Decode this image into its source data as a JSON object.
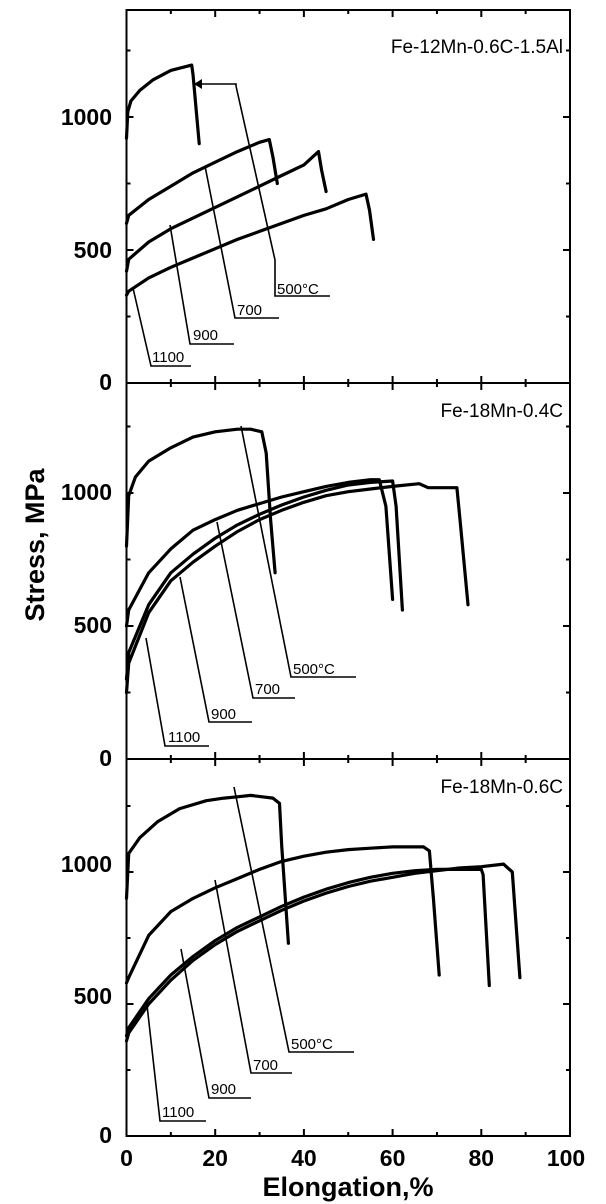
{
  "chart_data": {
    "type": "line",
    "xlabel": "Elongation,%",
    "ylabel": "Stress, MPa",
    "xlim": [
      0,
      100
    ],
    "ylim": [
      0,
      1420
    ],
    "x_ticks": [
      "0",
      "20",
      "40",
      "60",
      "80",
      "100"
    ],
    "y_ticks": [
      "0",
      "500",
      "1000"
    ],
    "panels": [
      {
        "title": "Fe-12Mn-0.6C-1.5Al",
        "series": [
          {
            "name": "500°C",
            "points": [
              [
                0,
                920
              ],
              [
                0.3,
                1020
              ],
              [
                1,
                1060
              ],
              [
                3,
                1100
              ],
              [
                6,
                1140
              ],
              [
                10,
                1175
              ],
              [
                14.7,
                1195
              ],
              [
                15,
                1160
              ],
              [
                16.4,
                900
              ]
            ]
          },
          {
            "name": "700",
            "points": [
              [
                0,
                600
              ],
              [
                0.5,
                630
              ],
              [
                5,
                690
              ],
              [
                10,
                740
              ],
              [
                15,
                790
              ],
              [
                20,
                830
              ],
              [
                25,
                870
              ],
              [
                30,
                905
              ],
              [
                32.2,
                915
              ],
              [
                33,
                850
              ],
              [
                34,
                750
              ]
            ]
          },
          {
            "name": "900",
            "points": [
              [
                0,
                420
              ],
              [
                0.5,
                465
              ],
              [
                5,
                530
              ],
              [
                10,
                580
              ],
              [
                15,
                620
              ],
              [
                20,
                660
              ],
              [
                25,
                700
              ],
              [
                30,
                740
              ],
              [
                35,
                780
              ],
              [
                40,
                820
              ],
              [
                43.3,
                870
              ],
              [
                44,
                800
              ],
              [
                45,
                720
              ]
            ]
          },
          {
            "name": "1100",
            "points": [
              [
                0,
                330
              ],
              [
                0.5,
                345
              ],
              [
                5,
                395
              ],
              [
                10,
                435
              ],
              [
                15,
                470
              ],
              [
                20,
                505
              ],
              [
                25,
                540
              ],
              [
                30,
                570
              ],
              [
                35,
                600
              ],
              [
                40,
                630
              ],
              [
                45,
                655
              ],
              [
                50,
                690
              ],
              [
                54,
                710
              ],
              [
                54.8,
                650
              ],
              [
                55.7,
                540
              ]
            ]
          }
        ],
        "labels": [
          "500°C",
          "700",
          "900",
          "1100"
        ]
      },
      {
        "title": "Fe-18Mn-0.4C",
        "series": [
          {
            "name": "500°C",
            "points": [
              [
                0,
                800
              ],
              [
                0.5,
                990
              ],
              [
                2,
                1060
              ],
              [
                5,
                1120
              ],
              [
                10,
                1170
              ],
              [
                15,
                1210
              ],
              [
                20,
                1230
              ],
              [
                25,
                1240
              ],
              [
                28,
                1240
              ],
              [
                30.5,
                1230
              ],
              [
                31.5,
                1150
              ],
              [
                32.5,
                900
              ],
              [
                33.5,
                700
              ]
            ]
          },
          {
            "name": "700",
            "points": [
              [
                0,
                500
              ],
              [
                0.5,
                560
              ],
              [
                5,
                700
              ],
              [
                10,
                790
              ],
              [
                15,
                860
              ],
              [
                20,
                900
              ],
              [
                25,
                935
              ],
              [
                30,
                960
              ],
              [
                35,
                985
              ],
              [
                40,
                1005
              ],
              [
                45,
                1025
              ],
              [
                50,
                1040
              ],
              [
                55,
                1050
              ],
              [
                57,
                1050
              ],
              [
                58.5,
                950
              ],
              [
                60,
                600
              ]
            ]
          },
          {
            "name": "900",
            "points": [
              [
                0,
                300
              ],
              [
                0.5,
                400
              ],
              [
                5,
                580
              ],
              [
                10,
                700
              ],
              [
                15,
                770
              ],
              [
                20,
                830
              ],
              [
                25,
                880
              ],
              [
                30,
                920
              ],
              [
                35,
                955
              ],
              [
                40,
                985
              ],
              [
                45,
                1010
              ],
              [
                50,
                1030
              ],
              [
                55,
                1040
              ],
              [
                60,
                1045
              ],
              [
                60.8,
                950
              ],
              [
                62.2,
                560
              ]
            ]
          },
          {
            "name": "1100",
            "points": [
              [
                0,
                250
              ],
              [
                0.5,
                360
              ],
              [
                5,
                550
              ],
              [
                10,
                670
              ],
              [
                15,
                740
              ],
              [
                20,
                800
              ],
              [
                25,
                855
              ],
              [
                30,
                900
              ],
              [
                35,
                935
              ],
              [
                40,
                965
              ],
              [
                45,
                990
              ],
              [
                50,
                1005
              ],
              [
                55,
                1015
              ],
              [
                60,
                1025
              ],
              [
                66,
                1035
              ],
              [
                68,
                1020
              ],
              [
                74.5,
                1020
              ],
              [
                75.2,
                900
              ],
              [
                77,
                580
              ]
            ]
          }
        ],
        "labels": [
          "500°C",
          "700",
          "900",
          "1100"
        ]
      },
      {
        "title": "Fe-18Mn-0.6C",
        "series": [
          {
            "name": "500°C",
            "points": [
              [
                0,
                900
              ],
              [
                0.5,
                1070
              ],
              [
                3,
                1130
              ],
              [
                7,
                1190
              ],
              [
                12,
                1240
              ],
              [
                18,
                1270
              ],
              [
                22,
                1280
              ],
              [
                25,
                1285
              ],
              [
                28,
                1290
              ],
              [
                33,
                1280
              ],
              [
                34.5,
                1260
              ],
              [
                35,
                1100
              ],
              [
                36.5,
                730
              ]
            ]
          },
          {
            "name": "700",
            "points": [
              [
                0,
                580
              ],
              [
                0.5,
                600
              ],
              [
                5,
                760
              ],
              [
                10,
                850
              ],
              [
                15,
                900
              ],
              [
                20,
                940
              ],
              [
                25,
                975
              ],
              [
                30,
                1010
              ],
              [
                35,
                1040
              ],
              [
                40,
                1060
              ],
              [
                45,
                1075
              ],
              [
                50,
                1085
              ],
              [
                55,
                1090
              ],
              [
                60,
                1095
              ],
              [
                67,
                1095
              ],
              [
                68.3,
                1080
              ],
              [
                69.2,
                900
              ],
              [
                70.5,
                610
              ]
            ]
          },
          {
            "name": "900",
            "points": [
              [
                0,
                380
              ],
              [
                0.5,
                410
              ],
              [
                5,
                520
              ],
              [
                10,
                610
              ],
              [
                15,
                680
              ],
              [
                20,
                740
              ],
              [
                25,
                790
              ],
              [
                30,
                830
              ],
              [
                35,
                870
              ],
              [
                40,
                905
              ],
              [
                45,
                935
              ],
              [
                50,
                960
              ],
              [
                55,
                980
              ],
              [
                60,
                995
              ],
              [
                65,
                1005
              ],
              [
                70,
                1010
              ],
              [
                80,
                1010
              ],
              [
                80.4,
                990
              ],
              [
                81.8,
                570
              ]
            ]
          },
          {
            "name": "1100",
            "points": [
              [
                0,
                360
              ],
              [
                0.5,
                390
              ],
              [
                5,
                500
              ],
              [
                10,
                590
              ],
              [
                15,
                665
              ],
              [
                20,
                725
              ],
              [
                25,
                775
              ],
              [
                30,
                815
              ],
              [
                35,
                855
              ],
              [
                40,
                890
              ],
              [
                45,
                920
              ],
              [
                50,
                945
              ],
              [
                55,
                965
              ],
              [
                60,
                980
              ],
              [
                65,
                995
              ],
              [
                70,
                1005
              ],
              [
                75,
                1015
              ],
              [
                80,
                1020
              ],
              [
                85,
                1030
              ],
              [
                87,
                1000
              ],
              [
                88.7,
                600
              ]
            ]
          }
        ],
        "labels": [
          "500°C",
          "700",
          "900",
          "1100"
        ]
      }
    ]
  }
}
